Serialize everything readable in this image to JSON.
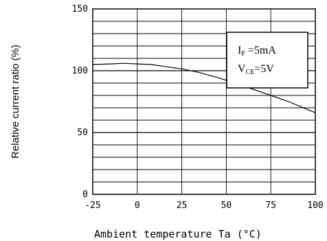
{
  "chart_data": {
    "type": "line",
    "xlabel": "Ambient  temperature  Ta  (°C)",
    "ylabel": "Relative current ratio (%)",
    "xlim": [
      -25,
      100
    ],
    "ylim": [
      0,
      150
    ],
    "x_ticks": [
      "-25",
      "0",
      "25",
      "50",
      "75",
      "100"
    ],
    "y_ticks": [
      "0",
      "50",
      "100",
      "150"
    ],
    "grid": true,
    "series": [
      {
        "x": [
          -25,
          -15,
          -8,
          0,
          8,
          15,
          25,
          35,
          45,
          55,
          65,
          75,
          85,
          95,
          100
        ],
        "y": [
          105,
          105.5,
          106,
          105.5,
          105,
          103.5,
          101.5,
          98.5,
          94.5,
          90,
          85,
          80,
          75,
          69,
          66
        ]
      }
    ],
    "legend": {
      "position": "top-right",
      "line1": {
        "main": "I",
        "sub": "F",
        "rest": " =5mA"
      },
      "line2": {
        "main": "V",
        "sub": "CE",
        "rest": "=5V"
      }
    }
  }
}
